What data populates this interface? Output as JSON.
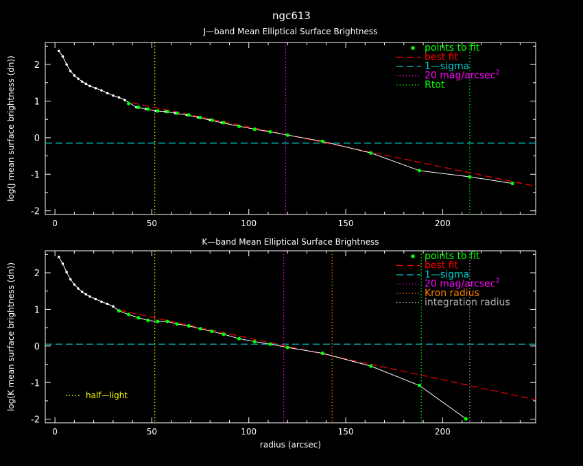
{
  "page_title": "ngc613",
  "colors": {
    "background": "#000000",
    "axes": "#ffffff",
    "points": "#00ff00",
    "profile_line": "#ffffff",
    "best_fit": "#ff0000",
    "one_sigma": "#00d0d0",
    "mag20": "#ff00ff",
    "rtot": "#00ff00",
    "kron": "#ff8000",
    "integration": "#b0b0b0",
    "half_light": "#ffff00"
  },
  "chart_data": [
    {
      "id": "jband",
      "type": "line",
      "title": "J—band Mean Elliptical Surface Brightness",
      "xlabel": "",
      "ylabel": "log(J mean surface brightness (dn))",
      "xlim": [
        -5,
        248
      ],
      "ylim": [
        -2.1,
        2.6
      ],
      "xticks": [
        0,
        50,
        100,
        150,
        200
      ],
      "yticks": [
        -2,
        -1,
        0,
        1,
        2
      ],
      "profile_x": [
        2,
        4,
        6,
        8,
        10,
        12,
        14,
        16,
        18,
        21,
        24,
        27,
        30,
        33,
        36,
        42,
        47,
        52,
        57,
        62,
        68,
        74,
        80,
        86,
        95,
        103,
        111,
        120,
        138,
        163,
        188,
        214,
        236
      ],
      "profile_y": [
        2.37,
        2.22,
        2.0,
        1.82,
        1.7,
        1.61,
        1.53,
        1.47,
        1.41,
        1.35,
        1.29,
        1.22,
        1.15,
        1.1,
        1.03,
        0.83,
        0.78,
        0.73,
        0.71,
        0.67,
        0.62,
        0.55,
        0.48,
        0.41,
        0.31,
        0.23,
        0.16,
        0.07,
        -0.1,
        -0.42,
        -0.9,
        -1.07,
        -1.25
      ],
      "fit_points_x": [
        38,
        43,
        48,
        53,
        58,
        63,
        69,
        75,
        81,
        87,
        95,
        103,
        111,
        120,
        138,
        163,
        188,
        214,
        236
      ],
      "fit_points_y": [
        0.93,
        0.83,
        0.78,
        0.73,
        0.71,
        0.67,
        0.62,
        0.55,
        0.48,
        0.41,
        0.31,
        0.23,
        0.16,
        0.07,
        -0.1,
        -0.42,
        -0.9,
        -1.07,
        -1.25
      ],
      "best_fit_x": [
        40,
        248
      ],
      "best_fit_y": [
        0.95,
        -1.33
      ],
      "one_sigma_y": -0.15,
      "vlines": [
        {
          "x": 51.5,
          "kind": "half_light"
        },
        {
          "x": 119,
          "kind": "mag20"
        },
        {
          "x": 214,
          "kind": "rtot"
        }
      ],
      "legend": [
        {
          "label": "points to fit",
          "kind": "points"
        },
        {
          "label": "best fit",
          "kind": "best_fit"
        },
        {
          "label": "1—sigma",
          "kind": "one_sigma"
        },
        {
          "label": "20 mag/arcsec",
          "sup": "2",
          "kind": "mag20"
        },
        {
          "label": "Rtot",
          "kind": "rtot"
        }
      ],
      "legend_position": "top-right",
      "annotation": ""
    },
    {
      "id": "kband",
      "type": "line",
      "title": "K—band Mean Elliptical Surface Brightness",
      "xlabel": "radius (arcsec)",
      "ylabel": "log(K mean surface brightness (dn))",
      "xlim": [
        -5,
        248
      ],
      "ylim": [
        -2.1,
        2.6
      ],
      "xticks": [
        0,
        50,
        100,
        150,
        200
      ],
      "yticks": [
        -2,
        -1,
        0,
        1,
        2
      ],
      "profile_x": [
        2,
        4,
        6,
        8,
        10,
        12,
        14,
        16,
        18,
        21,
        24,
        27,
        30,
        33,
        38,
        43,
        48,
        53,
        58,
        63,
        69,
        75,
        81,
        87,
        95,
        103,
        111,
        120,
        138,
        163,
        188,
        212
      ],
      "profile_y": [
        2.43,
        2.25,
        2.02,
        1.82,
        1.68,
        1.57,
        1.48,
        1.41,
        1.35,
        1.28,
        1.21,
        1.15,
        1.08,
        0.96,
        0.86,
        0.77,
        0.7,
        0.67,
        0.67,
        0.6,
        0.55,
        0.47,
        0.4,
        0.32,
        0.2,
        0.12,
        0.05,
        -0.04,
        -0.2,
        -0.55,
        -1.08,
        -1.99
      ],
      "fit_points_x": [
        33,
        38,
        43,
        48,
        53,
        58,
        63,
        69,
        75,
        81,
        87,
        95,
        103,
        111,
        120,
        138,
        163,
        188,
        212
      ],
      "fit_points_y": [
        0.96,
        0.86,
        0.77,
        0.7,
        0.67,
        0.67,
        0.6,
        0.55,
        0.47,
        0.4,
        0.32,
        0.2,
        0.12,
        0.05,
        -0.04,
        -0.2,
        -0.55,
        -1.08,
        -1.99
      ],
      "best_fit_x": [
        33,
        248
      ],
      "best_fit_y": [
        0.98,
        -1.47
      ],
      "one_sigma_y": 0.05,
      "vlines": [
        {
          "x": 51.5,
          "kind": "half_light"
        },
        {
          "x": 118,
          "kind": "mag20"
        },
        {
          "x": 143,
          "kind": "kron"
        },
        {
          "x": 189,
          "kind": "rtot"
        },
        {
          "x": 214,
          "kind": "integration"
        }
      ],
      "legend": [
        {
          "label": "points to fit",
          "kind": "points"
        },
        {
          "label": "best fit",
          "kind": "best_fit"
        },
        {
          "label": "1—sigma",
          "kind": "one_sigma"
        },
        {
          "label": "20 mag/arcsec",
          "sup": "2",
          "kind": "mag20"
        },
        {
          "label": "Kron radius",
          "kind": "kron"
        },
        {
          "label": "integration radius",
          "kind": "integration"
        }
      ],
      "legend_position": "top-right",
      "annotation": "half—light",
      "annotation_kind": "half_light"
    }
  ]
}
